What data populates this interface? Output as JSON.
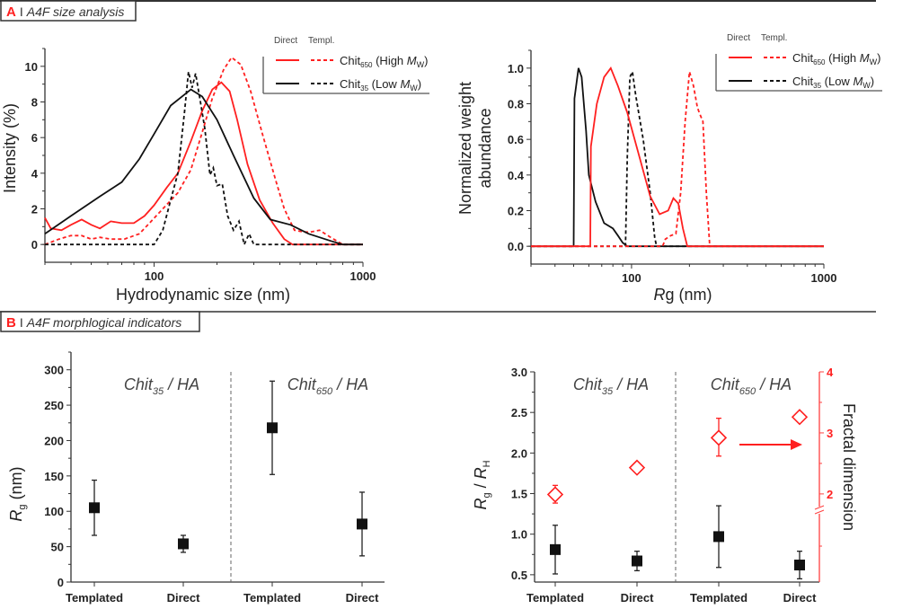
{
  "panels": {
    "A": {
      "letter": "A",
      "sep": "I",
      "title": "A4F size analysis"
    },
    "B": {
      "letter": "B",
      "sep": "I",
      "title": "A4F morphlogical indicators"
    }
  },
  "colors": {
    "red": "#ff2020",
    "black": "#111111",
    "axis": "#333333",
    "red_axis": "#ff4040"
  },
  "legend": {
    "direct": "Direct",
    "templ": "Templ.",
    "items": [
      {
        "color": "red",
        "pre": "Chit",
        "sub": "650",
        "mid": " (High ",
        "ital": "M",
        "isub": "W",
        "post": ")"
      },
      {
        "color": "black",
        "pre": "Chit",
        "sub": "35",
        "mid": "  (Low ",
        "ital": "M",
        "isub": "W",
        "post": ")"
      }
    ]
  },
  "chart_data": [
    {
      "type": "line",
      "xscale": "log",
      "xlim": [
        30,
        1000
      ],
      "ylim": [
        -1,
        11
      ],
      "xticks": [
        "100",
        "1000"
      ],
      "yticks": [
        "0",
        "2",
        "4",
        "6",
        "8",
        "10"
      ],
      "xlabel": "Hydrodynamic size (nm)",
      "ylabel": "Intensity (%)",
      "series": [
        {
          "name": "Chit650 (High MW) Direct",
          "color": "red",
          "dash": false,
          "points": [
            [
              30,
              1.5
            ],
            [
              32,
              0.9
            ],
            [
              36,
              0.8
            ],
            [
              40,
              1.1
            ],
            [
              45,
              1.4
            ],
            [
              50,
              1.1
            ],
            [
              55,
              0.9
            ],
            [
              62,
              1.3
            ],
            [
              70,
              1.2
            ],
            [
              80,
              1.2
            ],
            [
              90,
              1.6
            ],
            [
              100,
              2.2
            ],
            [
              115,
              3.2
            ],
            [
              130,
              4.0
            ],
            [
              150,
              5.8
            ],
            [
              170,
              7.5
            ],
            [
              190,
              8.7
            ],
            [
              210,
              9.1
            ],
            [
              230,
              8.6
            ],
            [
              250,
              7.0
            ],
            [
              280,
              4.5
            ],
            [
              320,
              2.5
            ],
            [
              370,
              1.2
            ],
            [
              420,
              0.3
            ],
            [
              460,
              0
            ],
            [
              1000,
              0
            ]
          ]
        },
        {
          "name": "Chit650 (High MW) Templ.",
          "color": "red",
          "dash": true,
          "points": [
            [
              30,
              0
            ],
            [
              35,
              0.3
            ],
            [
              40,
              0.5
            ],
            [
              45,
              0.5
            ],
            [
              50,
              0.3
            ],
            [
              55,
              0.4
            ],
            [
              62,
              0.3
            ],
            [
              72,
              0.3
            ],
            [
              85,
              0.6
            ],
            [
              95,
              1.2
            ],
            [
              110,
              2.0
            ],
            [
              130,
              2.9
            ],
            [
              150,
              4.2
            ],
            [
              170,
              6.3
            ],
            [
              190,
              8.2
            ],
            [
              215,
              9.8
            ],
            [
              235,
              10.5
            ],
            [
              260,
              10.1
            ],
            [
              290,
              8.6
            ],
            [
              330,
              6.2
            ],
            [
              380,
              3.7
            ],
            [
              420,
              2.0
            ],
            [
              470,
              0.8
            ],
            [
              520,
              0.7
            ],
            [
              560,
              0.7
            ],
            [
              620,
              0.8
            ],
            [
              700,
              0.4
            ],
            [
              800,
              0
            ],
            [
              1000,
              0
            ]
          ]
        },
        {
          "name": "Chit35 (Low MW) Direct",
          "color": "black",
          "dash": false,
          "points": [
            [
              30,
              0.6
            ],
            [
              40,
              1.6
            ],
            [
              55,
              2.7
            ],
            [
              70,
              3.5
            ],
            [
              85,
              4.8
            ],
            [
              100,
              6.2
            ],
            [
              120,
              7.8
            ],
            [
              150,
              8.7
            ],
            [
              170,
              8.3
            ],
            [
              200,
              7.0
            ],
            [
              240,
              5.0
            ],
            [
              300,
              2.6
            ],
            [
              360,
              1.4
            ],
            [
              450,
              1.1
            ],
            [
              550,
              0.6
            ],
            [
              700,
              0.2
            ],
            [
              800,
              0
            ],
            [
              1000,
              0
            ]
          ]
        },
        {
          "name": "Chit35 (Low MW) Templ.",
          "color": "black",
          "dash": true,
          "points": [
            [
              30,
              0
            ],
            [
              100,
              0
            ],
            [
              110,
              0.8
            ],
            [
              120,
              2.5
            ],
            [
              130,
              4.0
            ],
            [
              140,
              7.5
            ],
            [
              146,
              9.7
            ],
            [
              152,
              8.8
            ],
            [
              158,
              9.6
            ],
            [
              165,
              8.3
            ],
            [
              175,
              6.5
            ],
            [
              185,
              3.9
            ],
            [
              192,
              4.3
            ],
            [
              200,
              3.3
            ],
            [
              212,
              3.4
            ],
            [
              225,
              1.6
            ],
            [
              240,
              0.8
            ],
            [
              255,
              1.3
            ],
            [
              270,
              0
            ],
            [
              285,
              0.6
            ],
            [
              300,
              0
            ],
            [
              1000,
              0
            ]
          ]
        }
      ]
    },
    {
      "type": "line",
      "xscale": "log",
      "xlim": [
        30,
        1000
      ],
      "ylim": [
        -0.1,
        1.1
      ],
      "xticks": [
        "100",
        "1000"
      ],
      "yticks": [
        "0.0",
        "0.2",
        "0.4",
        "0.6",
        "0.8",
        "1.0"
      ],
      "xlabel_ital": "R",
      "xlabel": "g (nm)",
      "ylabel": [
        "Normalized weight",
        "abundance"
      ],
      "series": [
        {
          "name": "Chit35 (Low MW) Direct",
          "color": "black",
          "dash": false,
          "points": [
            [
              30,
              0
            ],
            [
              50,
              0
            ],
            [
              50.5,
              0.83
            ],
            [
              53,
              1.0
            ],
            [
              55,
              0.95
            ],
            [
              58,
              0.65
            ],
            [
              60,
              0.4
            ],
            [
              65,
              0.25
            ],
            [
              72,
              0.13
            ],
            [
              80,
              0.1
            ],
            [
              85,
              0.06
            ],
            [
              90,
              0.02
            ],
            [
              95,
              0
            ],
            [
              1000,
              0
            ]
          ]
        },
        {
          "name": "Chit35 (Low MW) Templ.",
          "color": "black",
          "dash": true,
          "points": [
            [
              30,
              0
            ],
            [
              93,
              0
            ],
            [
              95,
              0.5
            ],
            [
              98,
              0.95
            ],
            [
              101,
              0.98
            ],
            [
              105,
              0.85
            ],
            [
              115,
              0.6
            ],
            [
              125,
              0.3
            ],
            [
              132,
              0.05
            ],
            [
              135,
              0
            ],
            [
              1000,
              0
            ]
          ]
        },
        {
          "name": "Chit650 (High MW) Direct",
          "color": "red",
          "dash": false,
          "points": [
            [
              30,
              0
            ],
            [
              61,
              0
            ],
            [
              61.5,
              0.56
            ],
            [
              66,
              0.8
            ],
            [
              72,
              0.95
            ],
            [
              78,
              1.0
            ],
            [
              85,
              0.9
            ],
            [
              95,
              0.75
            ],
            [
              110,
              0.5
            ],
            [
              125,
              0.28
            ],
            [
              140,
              0.18
            ],
            [
              155,
              0.2
            ],
            [
              165,
              0.27
            ],
            [
              175,
              0.24
            ],
            [
              185,
              0.1
            ],
            [
              195,
              0
            ],
            [
              1000,
              0
            ]
          ]
        },
        {
          "name": "Chit650 (High MW) Templ.",
          "color": "red",
          "dash": true,
          "points": [
            [
              30,
              0
            ],
            [
              145,
              0
            ],
            [
              150,
              0.04
            ],
            [
              160,
              0.06
            ],
            [
              170,
              0.07
            ],
            [
              180,
              0.3
            ],
            [
              190,
              0.7
            ],
            [
              200,
              0.98
            ],
            [
              210,
              0.9
            ],
            [
              220,
              0.78
            ],
            [
              225,
              0.75
            ],
            [
              235,
              0.7
            ],
            [
              245,
              0.3
            ],
            [
              255,
              0
            ],
            [
              1000,
              0
            ]
          ]
        }
      ]
    },
    {
      "type": "scatter",
      "categories": [
        "Templated",
        "Direct",
        "Templated",
        "Direct"
      ],
      "groups": [
        {
          "pre": "Chit",
          "sub": "35",
          "post": " / HA"
        },
        {
          "pre": "Chit",
          "sub": "650",
          "post": " / HA"
        }
      ],
      "ylim": [
        0,
        325
      ],
      "yticks": [
        "0",
        "50",
        "100",
        "150",
        "200",
        "250",
        "300"
      ],
      "ylabel_ital": "R",
      "ylabel_sub": "g",
      "ylabel": " (nm)",
      "series": [
        {
          "marker": "square",
          "color": "black",
          "values": [
            105,
            54,
            218,
            82
          ],
          "err_low": [
            66,
            42,
            152,
            37
          ],
          "err_high": [
            144,
            66,
            284,
            127
          ]
        }
      ]
    },
    {
      "type": "scatter",
      "categories": [
        "Templated",
        "Direct",
        "Templated",
        "Direct"
      ],
      "groups": [
        {
          "pre": "Chit",
          "sub": "35",
          "post": " / HA"
        },
        {
          "pre": "Chit",
          "sub": "650",
          "post": " / HA"
        }
      ],
      "ylim": [
        0.41,
        3.0
      ],
      "yticks": [
        "0.5",
        "1.0",
        "1.5",
        "2.0",
        "2.5",
        "3.0"
      ],
      "ylabel_ital": "R",
      "ylabel_sub": "g",
      "ylabel_mid": " / ",
      "ylabel_ital2": "R",
      "ylabel_sub2": "H",
      "y2label": "Fractal dimension",
      "y2ticks": [
        "2",
        "3",
        "4"
      ],
      "y2_axis_break": true,
      "series": [
        {
          "marker": "square",
          "color": "black",
          "axis": "left",
          "values": [
            0.81,
            0.67,
            0.97,
            0.62
          ],
          "err_low": [
            0.51,
            0.55,
            0.59,
            0.45
          ],
          "err_high": [
            1.11,
            0.79,
            1.35,
            0.79
          ]
        },
        {
          "marker": "open-diamond",
          "color": "red",
          "axis": "right",
          "values": [
            1.99,
            2.43,
            2.92,
            3.26
          ],
          "err_low": [
            1.85,
            null,
            2.62,
            3.22
          ],
          "err_high": [
            2.14,
            null,
            3.24,
            3.3
          ]
        }
      ],
      "annotation": "arrow-right-pointing-to-right-axis"
    }
  ]
}
